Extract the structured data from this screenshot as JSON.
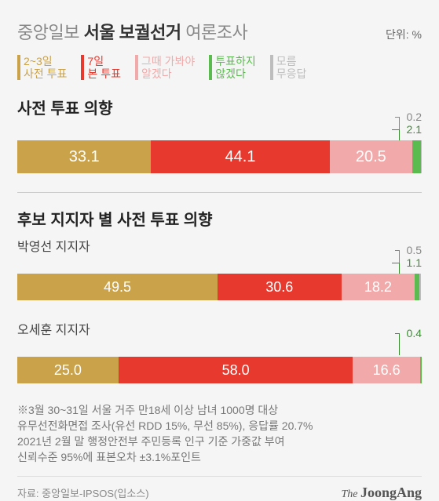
{
  "header": {
    "title_prefix": "중앙일보 ",
    "title_bold": "서울 보궐선거",
    "title_suffix": " 여론조사",
    "unit": "단위: %"
  },
  "legend": {
    "items": [
      {
        "label": "2~3일\n사전 투표",
        "color": "#c9a24a"
      },
      {
        "label": "7일\n본 투표",
        "color": "#e8392f"
      },
      {
        "label": "그때 가봐야\n알겠다",
        "color": "#f2a9a9"
      },
      {
        "label": "투표하지\n않겠다",
        "color": "#5bbb4f"
      },
      {
        "label": "모름\n무응답",
        "color": "#bdbdbd"
      }
    ]
  },
  "colors": {
    "pre": "#c9a24a",
    "main": "#e8392f",
    "undecided": "#f2a9a9",
    "novote": "#5bbb4f",
    "dk": "#bdbdbd",
    "text_gray": "#888",
    "callout_green": "#3a8f30"
  },
  "section1": {
    "title": "사전 투표 의향",
    "segments": [
      {
        "value": 33.1,
        "label": "33.1",
        "color": "#c9a24a"
      },
      {
        "value": 44.1,
        "label": "44.1",
        "color": "#e8392f"
      },
      {
        "value": 20.5,
        "label": "20.5",
        "color": "#f2a9a9"
      },
      {
        "value": 2.1,
        "label": "",
        "color": "#5bbb4f"
      },
      {
        "value": 0.2,
        "label": "",
        "color": "#bdbdbd"
      }
    ],
    "callouts": [
      {
        "label": "0.2",
        "color": "#888"
      },
      {
        "label": "2.1",
        "color": "#3a8f30"
      }
    ]
  },
  "section2": {
    "title": "후보 지지자 별 사전 투표 의향",
    "rows": [
      {
        "label": "박영선 지지자",
        "segments": [
          {
            "value": 49.5,
            "label": "49.5",
            "color": "#c9a24a"
          },
          {
            "value": 30.6,
            "label": "30.6",
            "color": "#e8392f"
          },
          {
            "value": 18.2,
            "label": "18.2",
            "color": "#f2a9a9"
          },
          {
            "value": 1.1,
            "label": "",
            "color": "#5bbb4f"
          },
          {
            "value": 0.5,
            "label": "",
            "color": "#bdbdbd"
          }
        ],
        "callouts": [
          {
            "label": "0.5",
            "color": "#888"
          },
          {
            "label": "1.1",
            "color": "#3a8f30"
          }
        ]
      },
      {
        "label": "오세훈 지지자",
        "segments": [
          {
            "value": 25.0,
            "label": "25.0",
            "color": "#c9a24a"
          },
          {
            "value": 58.0,
            "label": "58.0",
            "color": "#e8392f"
          },
          {
            "value": 16.6,
            "label": "16.6",
            "color": "#f2a9a9"
          },
          {
            "value": 0.4,
            "label": "",
            "color": "#5bbb4f"
          }
        ],
        "callouts": [
          {
            "label": "0.4",
            "color": "#3a8f30"
          }
        ]
      }
    ]
  },
  "footnote": "※3월 30~31일 서울 거주 만18세 이상 남녀 1000명 대상\n유무선전화면접 조사(유선 RDD 15%, 무선 85%), 응답률 20.7%\n2021년 2월 말 행정안전부 주민등록 인구 기준 가중값 부여\n신뢰수준 95%에 표본오차 ±3.1%포인트",
  "source": "자료: 중앙일보-IPSOS(입소스)",
  "brand_the": "The ",
  "brand_name": "JoongAng"
}
